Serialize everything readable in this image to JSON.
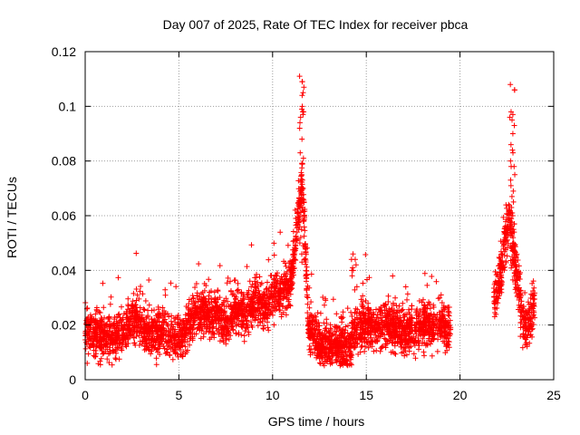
{
  "chart_data": {
    "type": "scatter",
    "title": "Day 007 of 2025, Rate Of TEC Index for receiver pbca",
    "xlabel": "GPS time / hours",
    "ylabel": "ROTI / TECUs",
    "xlim": [
      0,
      25
    ],
    "ylim": [
      0,
      0.12
    ],
    "x_ticks": [
      0,
      5,
      10,
      15,
      20,
      25
    ],
    "x_tick_labels": [
      "0",
      "5",
      "10",
      "15",
      "20",
      "25"
    ],
    "y_ticks": [
      0,
      0.02,
      0.04,
      0.06,
      0.08,
      0.1,
      0.12
    ],
    "y_tick_labels": [
      "0",
      "0.02",
      "0.04",
      "0.06",
      "0.08",
      "0.1",
      "0.12"
    ],
    "grid": true,
    "marker": "plus",
    "marker_color": "#ff0000",
    "profile": [
      [
        0.0,
        0.018
      ],
      [
        0.5,
        0.016
      ],
      [
        1.0,
        0.017
      ],
      [
        1.5,
        0.016
      ],
      [
        2.0,
        0.017
      ],
      [
        2.5,
        0.022
      ],
      [
        3.0,
        0.019
      ],
      [
        3.5,
        0.016
      ],
      [
        4.0,
        0.018
      ],
      [
        4.5,
        0.016
      ],
      [
        5.0,
        0.014
      ],
      [
        5.5,
        0.02
      ],
      [
        6.0,
        0.024
      ],
      [
        6.5,
        0.025
      ],
      [
        7.0,
        0.024
      ],
      [
        7.5,
        0.02
      ],
      [
        8.0,
        0.025
      ],
      [
        8.5,
        0.024
      ],
      [
        9.0,
        0.028
      ],
      [
        9.5,
        0.026
      ],
      [
        10.0,
        0.03
      ],
      [
        10.5,
        0.032
      ],
      [
        11.0,
        0.037
      ],
      [
        11.3,
        0.055
      ],
      [
        11.6,
        0.075
      ],
      [
        11.9,
        0.02
      ],
      [
        12.5,
        0.013
      ],
      [
        13.0,
        0.012
      ],
      [
        13.5,
        0.012
      ],
      [
        14.0,
        0.011
      ],
      [
        14.5,
        0.018
      ],
      [
        15.0,
        0.02
      ],
      [
        15.5,
        0.019
      ],
      [
        16.0,
        0.02
      ],
      [
        16.5,
        0.019
      ],
      [
        17.0,
        0.018
      ],
      [
        17.5,
        0.018
      ],
      [
        18.0,
        0.02
      ],
      [
        18.5,
        0.02
      ],
      [
        19.0,
        0.02
      ],
      [
        19.5,
        0.018
      ]
    ],
    "spread": 0.007,
    "segments": [
      [
        0.0,
        19.5
      ],
      [
        21.8,
        24.0
      ]
    ],
    "peak_spikes": [
      {
        "x": 11.55,
        "values": [
          0.111,
          0.109,
          0.107,
          0.104,
          0.1,
          0.099,
          0.098,
          0.097,
          0.094,
          0.088,
          0.083,
          0.079,
          0.075,
          0.07,
          0.065,
          0.062,
          0.058,
          0.055,
          0.052,
          0.049,
          0.046,
          0.043
        ]
      },
      {
        "x": 14.35,
        "values": [
          0.046,
          0.044,
          0.042,
          0.041,
          0.04
        ]
      },
      {
        "x": 22.8,
        "values": [
          0.108,
          0.106,
          0.098,
          0.097,
          0.095,
          0.09,
          0.086,
          0.083,
          0.08,
          0.078,
          0.075,
          0.071,
          0.069,
          0.065,
          0.063,
          0.06,
          0.057,
          0.054,
          0.05,
          0.048,
          0.045,
          0.042
        ]
      }
    ],
    "late_segment": [
      [
        21.8,
        0.03
      ],
      [
        22.0,
        0.035
      ],
      [
        22.2,
        0.04
      ],
      [
        22.4,
        0.05
      ],
      [
        22.6,
        0.06
      ],
      [
        22.8,
        0.05
      ],
      [
        23.0,
        0.04
      ],
      [
        23.2,
        0.03
      ],
      [
        23.4,
        0.02
      ],
      [
        23.6,
        0.018
      ],
      [
        23.8,
        0.025
      ],
      [
        24.0,
        0.03
      ]
    ],
    "point_count": 3600
  }
}
